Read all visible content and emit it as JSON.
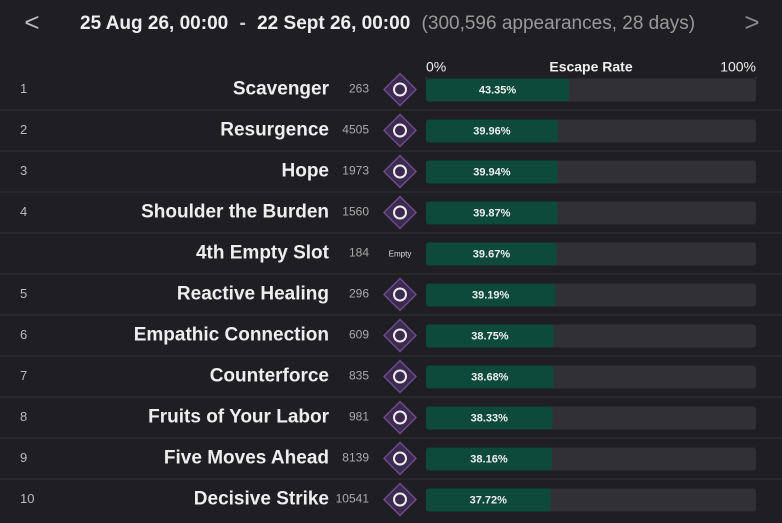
{
  "header": {
    "prev": "<",
    "start": "25 Aug 26, 00:00",
    "separator": "-",
    "end": "22 Sept 26, 00:00",
    "summary": "(300,596 appearances, 28 days)",
    "next": ">"
  },
  "columns": {
    "title": "Escape Rate",
    "scale": [
      {
        "value": 0,
        "label": "0%"
      },
      {
        "value": 100,
        "label": "100%"
      }
    ]
  },
  "rows": [
    {
      "rank": "1",
      "name": "Scavenger",
      "count": 263,
      "rate": {
        "value": 43.35,
        "label": "43.35%"
      }
    },
    {
      "rank": "2",
      "name": "Resurgence",
      "count": 4505,
      "rate": {
        "value": 39.96,
        "label": "39.96%"
      }
    },
    {
      "rank": "3",
      "name": "Hope",
      "count": 1973,
      "rate": {
        "value": 39.94,
        "label": "39.94%"
      }
    },
    {
      "rank": "4",
      "name": "Shoulder the Burden",
      "count": 1560,
      "rate": {
        "value": 39.87,
        "label": "39.87%"
      }
    },
    {
      "rank": null,
      "name": "4th Empty Slot",
      "count": 184,
      "icon": "Empty",
      "rate": {
        "value": 39.67,
        "label": "39.67%"
      }
    },
    {
      "rank": "5",
      "name": "Reactive Healing",
      "count": 296,
      "rate": {
        "value": 39.19,
        "label": "39.19%"
      }
    },
    {
      "rank": "6",
      "name": "Empathic Connection",
      "count": 609,
      "rate": {
        "value": 38.75,
        "label": "38.75%"
      }
    },
    {
      "rank": "7",
      "name": "Counterforce",
      "count": 835,
      "rate": {
        "value": 38.68,
        "label": "38.68%"
      }
    },
    {
      "rank": "8",
      "name": "Fruits of Your Labor",
      "count": 981,
      "rate": {
        "value": 38.33,
        "label": "38.33%"
      }
    },
    {
      "rank": "9",
      "name": "Five Moves Ahead",
      "count": 8139,
      "rate": {
        "value": 38.16,
        "label": "38.16%"
      }
    },
    {
      "rank": "10",
      "name": "Decisive Strike",
      "count": 10541,
      "rate": {
        "value": 37.72,
        "label": "37.72%"
      }
    }
  ]
}
